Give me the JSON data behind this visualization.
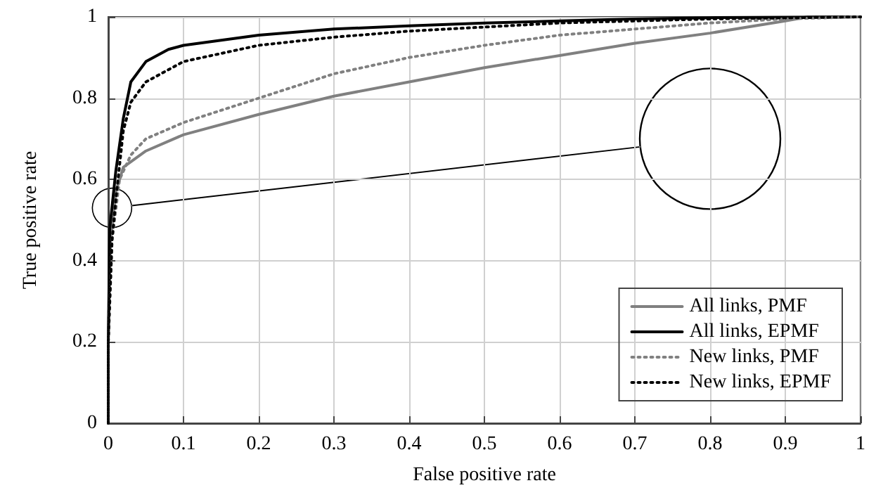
{
  "chart_data": {
    "type": "line",
    "xlabel": "False positive rate",
    "ylabel": "True positive rate",
    "xlim": [
      0,
      1
    ],
    "ylim": [
      0,
      1
    ],
    "xticks": [
      0,
      0.1,
      0.2,
      0.3,
      0.4,
      0.5,
      0.6,
      0.7,
      0.8,
      0.9,
      1
    ],
    "yticks": [
      0,
      0.2,
      0.4,
      0.6,
      0.8,
      1
    ],
    "grid": true,
    "legend": "bottom right",
    "marker": "none",
    "series": [
      {
        "name": "All links, PMF",
        "color": "#808080",
        "line_style": "solid",
        "x": [
          0,
          0,
          0.003,
          0.01,
          0.02,
          0.05,
          0.1,
          0.2,
          0.3,
          0.4,
          0.5,
          0.6,
          0.7,
          0.8,
          0.9,
          0.93,
          1
        ],
        "values": [
          0,
          0.2,
          0.45,
          0.57,
          0.63,
          0.67,
          0.71,
          0.76,
          0.805,
          0.84,
          0.875,
          0.905,
          0.935,
          0.96,
          0.99,
          1,
          1
        ]
      },
      {
        "name": "All links, EPMF",
        "color": "#000000",
        "line_style": "solid",
        "x": [
          0,
          0,
          0.002,
          0.01,
          0.02,
          0.03,
          0.05,
          0.08,
          0.1,
          0.2,
          0.3,
          0.4,
          0.5,
          0.6,
          0.7,
          0.8,
          1
        ],
        "values": [
          0,
          0.2,
          0.48,
          0.62,
          0.75,
          0.84,
          0.89,
          0.92,
          0.93,
          0.955,
          0.97,
          0.978,
          0.985,
          0.99,
          0.995,
          0.998,
          1
        ]
      },
      {
        "name": "New links, PMF",
        "color": "#808080",
        "line_style": "dotted",
        "x": [
          0,
          0,
          0.005,
          0.015,
          0.03,
          0.05,
          0.1,
          0.2,
          0.3,
          0.4,
          0.5,
          0.6,
          0.7,
          0.8,
          0.9,
          1
        ],
        "values": [
          0,
          0.2,
          0.45,
          0.6,
          0.66,
          0.7,
          0.74,
          0.8,
          0.86,
          0.9,
          0.93,
          0.955,
          0.97,
          0.985,
          0.995,
          1
        ]
      },
      {
        "name": "New links, EPMF",
        "color": "#000000",
        "line_style": "dotted",
        "x": [
          0,
          0,
          0.005,
          0.01,
          0.02,
          0.03,
          0.05,
          0.1,
          0.2,
          0.3,
          0.4,
          0.5,
          0.6,
          0.8,
          1
        ],
        "values": [
          0,
          0.2,
          0.45,
          0.55,
          0.72,
          0.79,
          0.84,
          0.89,
          0.93,
          0.95,
          0.965,
          0.975,
          0.985,
          0.995,
          1
        ]
      }
    ]
  }
}
